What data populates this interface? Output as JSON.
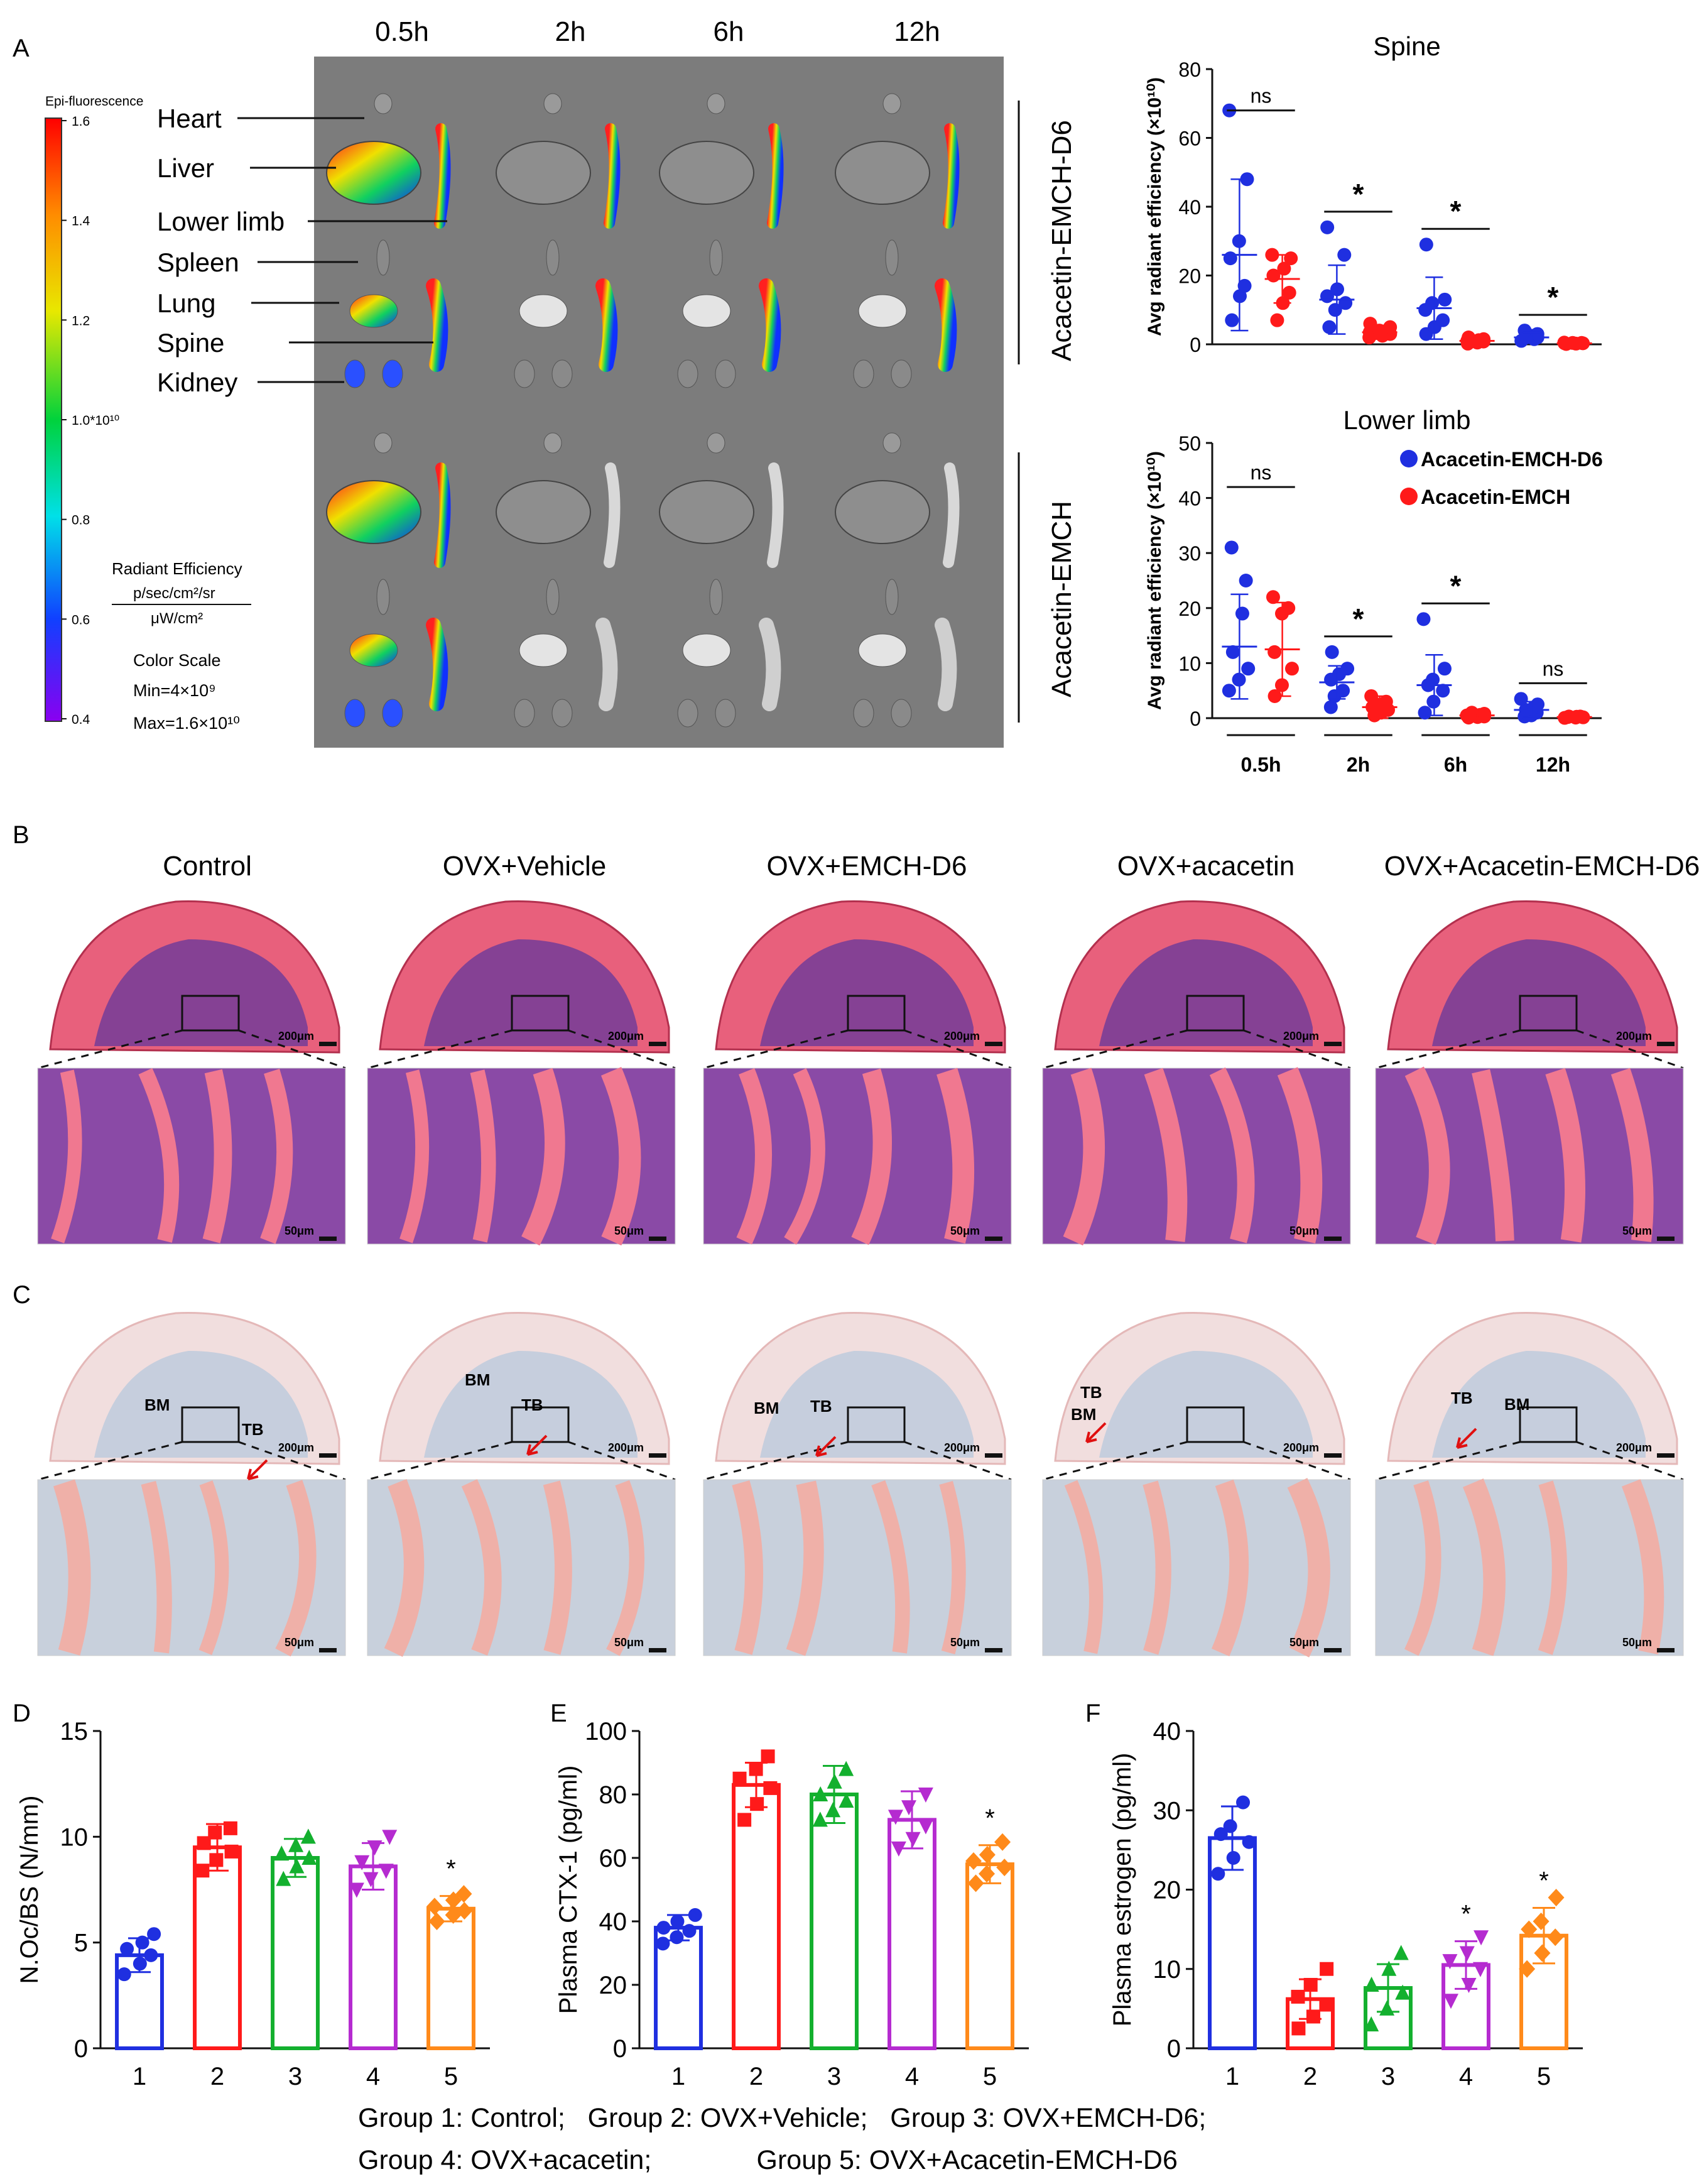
{
  "panels": {
    "A": "A",
    "B": "B",
    "C": "C",
    "D": "D",
    "E": "E",
    "F": "F"
  },
  "imaging": {
    "time_labels": [
      "0.5h",
      "2h",
      "6h",
      "12h"
    ],
    "organ_labels": [
      "Heart",
      "Liver",
      "Lower limb",
      "Spleen",
      "Lung",
      "Spine",
      "Kidney"
    ],
    "group_labels": [
      "Acacetin-EMCH-D6",
      "Acacetin-EMCH"
    ],
    "colorbar": {
      "title": "Epi-fluorescence",
      "ticks": [
        "1.6",
        "1.4",
        "1.2",
        "1.0*10¹⁰",
        "0.8",
        "0.6",
        "0.4"
      ],
      "unit_title": "Radiant Efficiency",
      "unit_num": "p/sec/cm²/sr",
      "unit_den": "μW/cm²",
      "scale_title": "Color Scale",
      "min": "Min=4×10⁹",
      "max": "Max=1.6×10¹⁰"
    }
  },
  "histology": {
    "groups": [
      "Control",
      "OVX+Vehicle",
      "OVX+EMCH-D6",
      "OVX+acacetin",
      "OVX+Acacetin-EMCH-D6"
    ],
    "scale_low": "200μm",
    "scale_high": "50μm",
    "labels": {
      "bm": "BM",
      "tb": "TB"
    }
  },
  "legend_footer": {
    "line1": "Group 1: Control;   Group 2: OVX+Vehicle;   Group 3: OVX+EMCH-D6;",
    "line2": "Group 4: OVX+acacetin;              Group 5: OVX+Acacetin-EMCH-D6"
  },
  "colors": {
    "blue": "#1f2fe0",
    "red": "#ff1a1a",
    "green": "#13b02e",
    "magenta": "#b52bd0",
    "orange": "#ff8a1a"
  },
  "chart_data": [
    {
      "id": "spine",
      "type": "scatter",
      "title": "Spine",
      "ylabel": "Avg radiant efficiency (×10¹⁰)",
      "ylim": [
        0,
        80
      ],
      "yticks": [
        0,
        20,
        40,
        60,
        80
      ],
      "categories": [
        "0.5h",
        "2h",
        "6h",
        "12h"
      ],
      "series": [
        {
          "name": "Acacetin-EMCH-D6",
          "color": "#1f2fe0",
          "mean": [
            26,
            13,
            10.5,
            2
          ],
          "sd": [
            22,
            10,
            9,
            1.5
          ],
          "points": [
            [
              7,
              14,
              17,
              25,
              30,
              48,
              68
            ],
            [
              5,
              10,
              12,
              14,
              16,
              26,
              34
            ],
            [
              3,
              5,
              7,
              10,
              12,
              13,
              29
            ],
            [
              1,
              1.5,
              2,
              2,
              2.5,
              3,
              4
            ]
          ]
        },
        {
          "name": "Acacetin-EMCH",
          "color": "#ff1a1a",
          "mean": [
            19,
            3.5,
            1,
            0.3
          ],
          "sd": [
            7,
            2,
            1,
            0.2
          ],
          "points": [
            [
              7,
              12,
              15,
              20,
              22,
              25,
              26
            ],
            [
              2,
              2.5,
              3,
              3.5,
              4,
              5,
              6
            ],
            [
              0.2,
              0.5,
              0.8,
              1,
              1.2,
              1.5,
              2
            ],
            [
              0.1,
              0.2,
              0.3,
              0.3,
              0.4,
              0.4,
              0.5
            ]
          ]
        }
      ],
      "significance": [
        "ns",
        "*",
        "*",
        "*"
      ]
    },
    {
      "id": "lowerlimb",
      "type": "scatter",
      "title": "Lower limb",
      "ylabel": "Avg radiant efficiency (×10¹⁰)",
      "ylim": [
        0,
        50
      ],
      "yticks": [
        0,
        10,
        20,
        30,
        40,
        50
      ],
      "categories": [
        "0.5h",
        "2h",
        "6h",
        "12h"
      ],
      "series": [
        {
          "name": "Acacetin-EMCH-D6",
          "color": "#1f2fe0",
          "mean": [
            13,
            6.5,
            6,
            1.5
          ],
          "sd": [
            9.5,
            3,
            5.5,
            1.5
          ],
          "points": [
            [
              5,
              7,
              9,
              12,
              19,
              25,
              31
            ],
            [
              2,
              4,
              5,
              7,
              8,
              9,
              12
            ],
            [
              1,
              3,
              5,
              6,
              7,
              9,
              18
            ],
            [
              0.3,
              0.5,
              1,
              1.5,
              2,
              2.5,
              3.5
            ]
          ]
        },
        {
          "name": "Acacetin-EMCH",
          "color": "#ff1a1a",
          "mean": [
            12.5,
            2,
            0.5,
            0.2
          ],
          "sd": [
            8.5,
            2,
            0.5,
            0.2
          ],
          "points": [
            [
              4,
              6,
              9,
              12,
              19,
              20,
              22
            ],
            [
              0.5,
              1,
              1.5,
              2,
              2.5,
              3,
              4
            ],
            [
              0.1,
              0.2,
              0.3,
              0.5,
              0.6,
              0.8,
              1
            ],
            [
              0.05,
              0.1,
              0.15,
              0.2,
              0.25,
              0.3,
              0.3
            ]
          ]
        }
      ],
      "significance": [
        "ns",
        "*",
        "*",
        "ns"
      ],
      "legend": [
        "Acacetin-EMCH-D6",
        "Acacetin-EMCH"
      ]
    },
    {
      "id": "D",
      "type": "bar",
      "ylabel": "N.Oc/BS (N/mm)",
      "ylim": [
        0,
        15
      ],
      "yticks": [
        0,
        5,
        10,
        15
      ],
      "categories": [
        "1",
        "2",
        "3",
        "4",
        "5"
      ],
      "values": [
        4.4,
        9.5,
        9.0,
        8.6,
        6.6
      ],
      "sd": [
        0.8,
        1.1,
        0.9,
        1.1,
        0.6
      ],
      "points": [
        [
          3.5,
          4,
          4.4,
          4.7,
          5,
          5.4
        ],
        [
          8.4,
          8.9,
          9.3,
          9.7,
          10.2,
          10.4
        ],
        [
          8,
          8.6,
          9,
          9.2,
          9.6,
          10
        ],
        [
          7.5,
          8,
          8.4,
          8.8,
          9.5,
          10
        ],
        [
          6,
          6.3,
          6.5,
          6.7,
          7,
          7.3
        ]
      ],
      "markers": [
        "circle",
        "square",
        "triangle",
        "tri-down",
        "diamond"
      ],
      "significance": [
        "",
        "",
        "",
        "",
        "*"
      ]
    },
    {
      "id": "E",
      "type": "bar",
      "ylabel": "Plasma CTX-1 (pg/ml)",
      "ylim": [
        0,
        100
      ],
      "yticks": [
        0,
        20,
        40,
        60,
        80,
        100
      ],
      "categories": [
        "1",
        "2",
        "3",
        "4",
        "5"
      ],
      "values": [
        38,
        83,
        80,
        72,
        58
      ],
      "sd": [
        4,
        7,
        9,
        9,
        6
      ],
      "points": [
        [
          33,
          35,
          37,
          38,
          40,
          42
        ],
        [
          72,
          77,
          82,
          85,
          88,
          92
        ],
        [
          72,
          75,
          78,
          80,
          84,
          88
        ],
        [
          63,
          66,
          70,
          73,
          76,
          80
        ],
        [
          52,
          55,
          57,
          59,
          61,
          65
        ]
      ],
      "markers": [
        "circle",
        "square",
        "triangle",
        "tri-down",
        "diamond"
      ],
      "significance": [
        "",
        "",
        "",
        "",
        "*"
      ]
    },
    {
      "id": "F",
      "type": "bar",
      "ylabel": "Plasma estrogen (pg/ml)",
      "ylim": [
        0,
        40
      ],
      "yticks": [
        0,
        10,
        20,
        30,
        40
      ],
      "categories": [
        "1",
        "2",
        "3",
        "4",
        "5"
      ],
      "values": [
        26.5,
        6.2,
        7.6,
        10.5,
        14.2
      ],
      "sd": [
        4,
        2.5,
        3,
        3,
        3.5
      ],
      "points": [
        [
          22,
          24,
          26,
          27,
          28,
          31
        ],
        [
          2.5,
          4,
          5.5,
          6.5,
          8,
          10
        ],
        [
          3,
          5,
          7,
          8,
          10,
          12
        ],
        [
          6,
          8,
          10,
          11,
          12,
          14
        ],
        [
          10,
          12,
          14,
          15,
          16,
          19
        ]
      ],
      "markers": [
        "circle",
        "square",
        "triangle",
        "tri-down",
        "diamond"
      ],
      "significance": [
        "",
        "",
        "",
        "*",
        "*"
      ]
    }
  ]
}
